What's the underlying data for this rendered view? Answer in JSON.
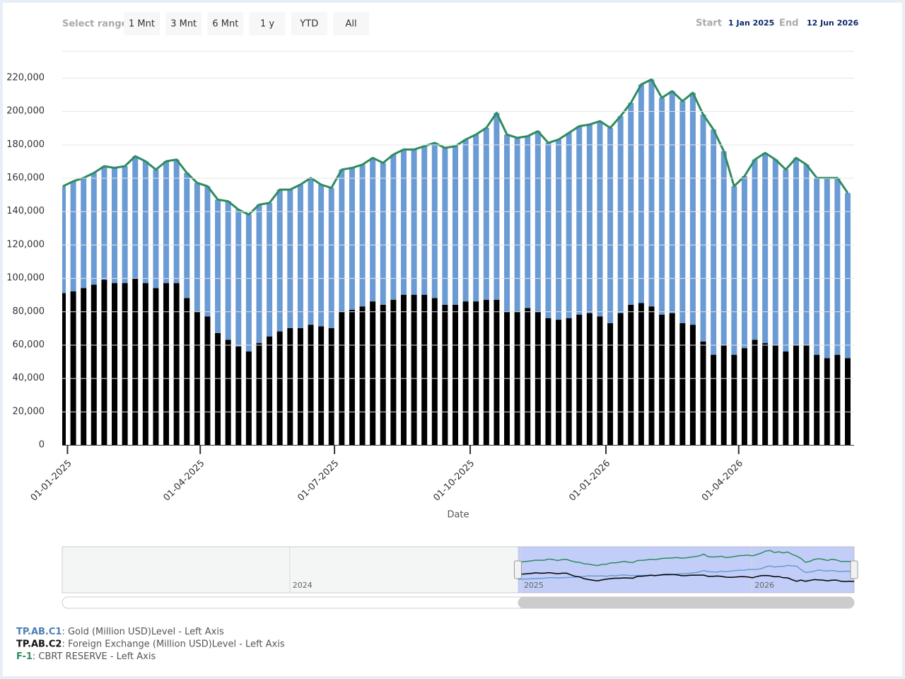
{
  "chart_data": {
    "type": "bar",
    "range_selector": {
      "label": "Select range",
      "buttons": [
        "1 Mnt",
        "3 Mnt",
        "6 Mnt",
        "1 y",
        "YTD",
        "All"
      ]
    },
    "date_range": {
      "start_label": "Start",
      "start": "1 Jan 2025",
      "end_label": "End",
      "end": "12 Jun 2026"
    },
    "x_label": "Date",
    "x": [
      "2024-12-27",
      "2025-01-03",
      "2025-01-10",
      "2025-01-17",
      "2025-01-24",
      "2025-01-31",
      "2025-02-07",
      "2025-02-14",
      "2025-02-21",
      "2025-02-28",
      "2025-03-07",
      "2025-03-14",
      "2025-03-21",
      "2025-03-28",
      "2025-04-04",
      "2025-04-11",
      "2025-04-18",
      "2025-04-25",
      "2025-05-02",
      "2025-05-09",
      "2025-05-16",
      "2025-05-23",
      "2025-05-30",
      "2025-06-06",
      "2025-06-13",
      "2025-06-20",
      "2025-06-27",
      "2025-07-04",
      "2025-07-11",
      "2025-07-18",
      "2025-07-25",
      "2025-08-01",
      "2025-08-08",
      "2025-08-15",
      "2025-08-22",
      "2025-08-29",
      "2025-09-05",
      "2025-09-12",
      "2025-09-19",
      "2025-09-26",
      "2025-10-03",
      "2025-10-10",
      "2025-10-17",
      "2025-10-24",
      "2025-10-31",
      "2025-11-07",
      "2025-11-14",
      "2025-11-21",
      "2025-11-28",
      "2025-12-05",
      "2025-12-12",
      "2025-12-19",
      "2025-12-26",
      "2026-01-02",
      "2026-01-09",
      "2026-01-16",
      "2026-01-23",
      "2026-01-30",
      "2026-02-06",
      "2026-02-13",
      "2026-02-20",
      "2026-02-27",
      "2026-03-06",
      "2026-03-13",
      "2026-03-20",
      "2026-03-27",
      "2026-04-03",
      "2026-04-10",
      "2026-04-17",
      "2026-04-24",
      "2026-05-01",
      "2026-05-08",
      "2026-05-15",
      "2026-05-22",
      "2026-05-29",
      "2026-06-05",
      "2026-06-12"
    ],
    "xlim": [
      "2024-12-27",
      "2026-06-12"
    ],
    "xticks": [
      {
        "value": "2025-01-01",
        "label": "01-01-2025"
      },
      {
        "value": "2025-04-01",
        "label": "01-04-2025"
      },
      {
        "value": "2025-07-01",
        "label": "01-07-2025"
      },
      {
        "value": "2025-10-01",
        "label": "01-10-2025"
      },
      {
        "value": "2026-01-01",
        "label": "01-01-2026"
      },
      {
        "value": "2026-04-01",
        "label": "01-04-2026"
      }
    ],
    "ylim": [
      0,
      220000
    ],
    "yticks": [
      0,
      {
        "value": 20000,
        "label": "20,000"
      },
      {
        "value": 40000,
        "label": "40,000"
      },
      {
        "value": 60000,
        "label": "60,000"
      },
      {
        "value": 80000,
        "label": "80,000"
      },
      {
        "value": 100000,
        "label": "100,000"
      },
      {
        "value": 120000,
        "label": "120,000"
      },
      {
        "value": 140000,
        "label": "140,000"
      },
      {
        "value": 160000,
        "label": "160,000"
      },
      {
        "value": 180000,
        "label": "180,000"
      },
      {
        "value": 200000,
        "label": "200,000"
      },
      {
        "value": 220000,
        "label": "220,000"
      }
    ],
    "grid": true,
    "series": [
      {
        "name": "TP.AB.C1",
        "description": ": Gold (Million USD)Level - Left Axis",
        "color": "#6a9bd4",
        "type": "column",
        "values": [
          64000,
          66000,
          66000,
          67000,
          68000,
          69000,
          70000,
          73000,
          73000,
          71000,
          73000,
          74000,
          75000,
          77000,
          78000,
          80000,
          83000,
          82000,
          82000,
          83000,
          80000,
          85000,
          83000,
          86000,
          88000,
          85000,
          84000,
          85000,
          85000,
          85000,
          86000,
          85000,
          87000,
          87000,
          87000,
          89000,
          93000,
          94000,
          95000,
          97000,
          100000,
          103000,
          112000,
          106000,
          104000,
          103000,
          108000,
          105000,
          108000,
          111000,
          113000,
          113000,
          117000,
          117000,
          118000,
          121000,
          131000,
          136000,
          130000,
          133000,
          133000,
          139000,
          136000,
          135000,
          116000,
          101000,
          103000,
          108000,
          114000,
          111000,
          109000,
          112000,
          108000,
          106000,
          108000,
          106000,
          99000
        ]
      },
      {
        "name": "TP.AB.C2",
        "description": ": Foreign Exchange (Million USD)Level - Left Axis",
        "color": "#000000",
        "type": "column",
        "values": [
          91000,
          92000,
          94000,
          96000,
          99000,
          97000,
          97000,
          100000,
          97000,
          94000,
          97000,
          97000,
          88000,
          80000,
          77000,
          67000,
          63000,
          59000,
          56000,
          61000,
          65000,
          68000,
          70000,
          70000,
          72000,
          71000,
          70000,
          80000,
          81000,
          83000,
          86000,
          84000,
          87000,
          90000,
          90000,
          90000,
          88000,
          84000,
          84000,
          86000,
          86000,
          87000,
          87000,
          80000,
          80000,
          82000,
          80000,
          76000,
          75000,
          76000,
          78000,
          79000,
          77000,
          73000,
          79000,
          84000,
          85000,
          83000,
          78000,
          79000,
          73000,
          72000,
          62000,
          54000,
          60000,
          54000,
          58000,
          63000,
          61000,
          60000,
          56000,
          60000,
          60000,
          54000,
          52000,
          54000,
          52000
        ]
      },
      {
        "name": "F-1",
        "description": ": CBRT RESERVE - Left Axis",
        "color": "#2e8b5f",
        "type": "line",
        "values": [
          155000,
          158000,
          160000,
          163000,
          167000,
          166000,
          167000,
          173000,
          170000,
          165000,
          170000,
          171000,
          163000,
          157000,
          155000,
          147000,
          146000,
          141000,
          138000,
          144000,
          145000,
          153000,
          153000,
          156000,
          160000,
          156000,
          154000,
          165000,
          166000,
          168000,
          172000,
          169000,
          174000,
          177000,
          177000,
          179000,
          181000,
          178000,
          179000,
          183000,
          186000,
          190000,
          199000,
          186000,
          184000,
          185000,
          188000,
          181000,
          183000,
          187000,
          191000,
          192000,
          194000,
          190000,
          197000,
          205000,
          216000,
          219000,
          208000,
          212000,
          206000,
          211000,
          198000,
          189000,
          176000,
          155000,
          161000,
          171000,
          175000,
          171000,
          165000,
          172000,
          168000,
          160000,
          160000,
          160000,
          151000
        ]
      }
    ],
    "navigator": {
      "xlim": [
        "2023-01-06",
        "2026-06-12"
      ],
      "xticks": [
        {
          "value": "2024-01-01",
          "label": "2024"
        },
        {
          "value": "2025-01-01",
          "label": "2025"
        },
        {
          "value": "2026-01-01",
          "label": "2026"
        }
      ]
    }
  }
}
